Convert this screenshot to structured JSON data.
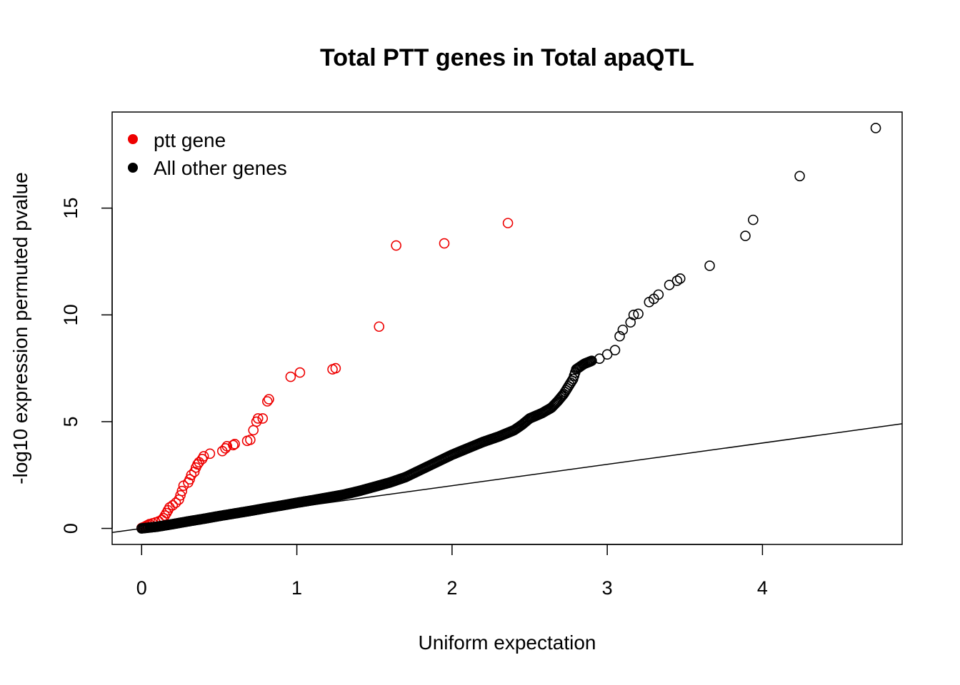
{
  "chart_data": {
    "type": "scatter",
    "title": "Total PTT genes in Total apaQTL",
    "xlabel": "Uniform expectation",
    "ylabel": "-log10 expression permuted pvalue",
    "xlim": [
      -0.19,
      4.9
    ],
    "ylim": [
      -0.75,
      19.5
    ],
    "x_ticks": [
      0,
      1,
      2,
      3,
      4
    ],
    "y_ticks": [
      0,
      5,
      10,
      15
    ],
    "reference_line": {
      "intercept": 0,
      "slope": 1
    },
    "legend": {
      "position": "top-left",
      "entries": [
        {
          "label": "ptt gene",
          "color": "#ee0000"
        },
        {
          "label": "All other genes",
          "color": "#000000"
        }
      ]
    },
    "series": [
      {
        "name": "ptt gene",
        "color": "#ee0000",
        "points": [
          [
            0.0,
            0.02
          ],
          [
            0.01,
            0.05
          ],
          [
            0.02,
            0.08
          ],
          [
            0.03,
            0.12
          ],
          [
            0.04,
            0.16
          ],
          [
            0.05,
            0.2
          ],
          [
            0.07,
            0.24
          ],
          [
            0.09,
            0.28
          ],
          [
            0.11,
            0.33
          ],
          [
            0.13,
            0.4
          ],
          [
            0.14,
            0.48
          ],
          [
            0.15,
            0.6
          ],
          [
            0.16,
            0.72
          ],
          [
            0.17,
            0.85
          ],
          [
            0.18,
            0.98
          ],
          [
            0.2,
            1.08
          ],
          [
            0.22,
            1.2
          ],
          [
            0.24,
            1.35
          ],
          [
            0.25,
            1.55
          ],
          [
            0.26,
            1.75
          ],
          [
            0.27,
            2.0
          ],
          [
            0.3,
            2.15
          ],
          [
            0.31,
            2.3
          ],
          [
            0.32,
            2.5
          ],
          [
            0.34,
            2.65
          ],
          [
            0.35,
            2.85
          ],
          [
            0.36,
            3.0
          ],
          [
            0.37,
            3.1
          ],
          [
            0.39,
            3.25
          ],
          [
            0.4,
            3.38
          ],
          [
            0.44,
            3.5
          ],
          [
            0.52,
            3.62
          ],
          [
            0.54,
            3.75
          ],
          [
            0.55,
            3.85
          ],
          [
            0.59,
            3.9
          ],
          [
            0.6,
            3.95
          ],
          [
            0.68,
            4.1
          ],
          [
            0.7,
            4.15
          ],
          [
            0.72,
            4.6
          ],
          [
            0.74,
            5.0
          ],
          [
            0.75,
            5.15
          ],
          [
            0.78,
            5.15
          ],
          [
            0.81,
            5.95
          ],
          [
            0.82,
            6.05
          ],
          [
            0.96,
            7.1
          ],
          [
            1.02,
            7.3
          ],
          [
            1.23,
            7.45
          ],
          [
            1.25,
            7.5
          ],
          [
            1.53,
            9.45
          ],
          [
            1.64,
            13.25
          ],
          [
            1.95,
            13.35
          ],
          [
            2.36,
            14.3
          ]
        ]
      },
      {
        "name": "All other genes",
        "color": "#000000",
        "points": [
          [
            0.0,
            0.0
          ],
          [
            0.1,
            0.08
          ],
          [
            0.2,
            0.2
          ],
          [
            0.3,
            0.33
          ],
          [
            0.4,
            0.45
          ],
          [
            0.5,
            0.58
          ],
          [
            0.6,
            0.7
          ],
          [
            0.7,
            0.82
          ],
          [
            0.8,
            0.95
          ],
          [
            0.9,
            1.07
          ],
          [
            1.0,
            1.2
          ],
          [
            1.1,
            1.32
          ],
          [
            1.2,
            1.45
          ],
          [
            1.3,
            1.58
          ],
          [
            1.4,
            1.75
          ],
          [
            1.5,
            1.95
          ],
          [
            1.6,
            2.15
          ],
          [
            1.7,
            2.4
          ],
          [
            1.8,
            2.75
          ],
          [
            1.9,
            3.1
          ],
          [
            2.0,
            3.45
          ],
          [
            2.1,
            3.75
          ],
          [
            2.2,
            4.05
          ],
          [
            2.3,
            4.3
          ],
          [
            2.4,
            4.6
          ],
          [
            2.45,
            4.85
          ],
          [
            2.5,
            5.15
          ],
          [
            2.58,
            5.4
          ],
          [
            2.64,
            5.65
          ],
          [
            2.68,
            5.95
          ],
          [
            2.72,
            6.3
          ],
          [
            2.75,
            6.65
          ],
          [
            2.78,
            7.0
          ],
          [
            2.8,
            7.45
          ],
          [
            2.85,
            7.7
          ],
          [
            2.9,
            7.85
          ],
          [
            2.95,
            7.95
          ],
          [
            3.0,
            8.15
          ],
          [
            3.05,
            8.35
          ],
          [
            3.08,
            9.0
          ],
          [
            3.1,
            9.3
          ],
          [
            3.15,
            9.65
          ],
          [
            3.17,
            10.0
          ],
          [
            3.2,
            10.05
          ],
          [
            3.27,
            10.6
          ],
          [
            3.3,
            10.75
          ],
          [
            3.33,
            10.95
          ],
          [
            3.4,
            11.4
          ],
          [
            3.45,
            11.6
          ],
          [
            3.47,
            11.7
          ],
          [
            3.66,
            12.3
          ],
          [
            3.89,
            13.7
          ],
          [
            3.94,
            14.45
          ],
          [
            4.24,
            16.5
          ],
          [
            4.73,
            18.75
          ]
        ]
      }
    ]
  }
}
